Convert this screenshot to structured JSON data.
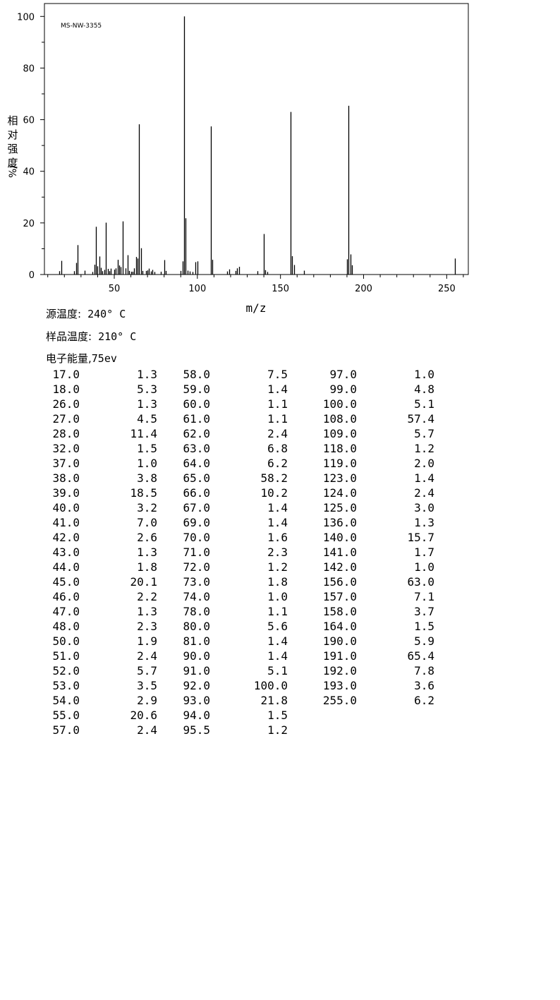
{
  "chart_data": {
    "type": "bar",
    "title": "MS-NW-3355",
    "xlabel": "m/z",
    "ylabel_chars": [
      "相",
      "对",
      "强",
      "度"
    ],
    "ylabel_unit": "%/",
    "xlim": [
      8,
      263
    ],
    "ylim": [
      0,
      105
    ],
    "xticks": [
      50,
      100,
      150,
      200,
      250
    ],
    "yticks": [
      0,
      20,
      40,
      60,
      80,
      100
    ],
    "x": [
      17.0,
      18.0,
      26.0,
      27.0,
      28.0,
      32.0,
      37.0,
      38.0,
      39.0,
      40.0,
      41.0,
      42.0,
      43.0,
      44.0,
      45.0,
      46.0,
      47.0,
      48.0,
      50.0,
      51.0,
      52.0,
      53.0,
      54.0,
      55.0,
      57.0,
      58.0,
      59.0,
      60.0,
      61.0,
      62.0,
      63.0,
      64.0,
      65.0,
      66.0,
      67.0,
      69.0,
      70.0,
      71.0,
      72.0,
      73.0,
      74.0,
      78.0,
      80.0,
      81.0,
      90.0,
      91.0,
      92.0,
      93.0,
      94.0,
      95.5,
      97.0,
      99.0,
      100.0,
      108.0,
      109.0,
      118.0,
      119.0,
      123.0,
      124.0,
      125.0,
      136.0,
      140.0,
      141.0,
      142.0,
      156.0,
      157.0,
      158.0,
      164.0,
      190.0,
      191.0,
      192.0,
      193.0,
      255.0
    ],
    "y": [
      1.3,
      5.3,
      1.3,
      4.5,
      11.4,
      1.5,
      1.0,
      3.8,
      18.5,
      3.2,
      7.0,
      2.6,
      1.3,
      1.8,
      20.1,
      2.2,
      1.3,
      2.3,
      1.9,
      2.4,
      5.7,
      3.5,
      2.9,
      20.6,
      2.4,
      7.5,
      1.4,
      1.1,
      1.1,
      2.4,
      6.8,
      6.2,
      58.2,
      10.2,
      1.4,
      1.4,
      1.6,
      2.3,
      1.2,
      1.8,
      1.0,
      1.1,
      5.6,
      1.4,
      1.4,
      5.1,
      100.0,
      21.8,
      1.5,
      1.2,
      1.0,
      4.8,
      5.1,
      57.4,
      5.7,
      1.2,
      2.0,
      1.4,
      2.4,
      3.0,
      1.3,
      15.7,
      1.7,
      1.0,
      63.0,
      7.1,
      3.7,
      1.5,
      5.9,
      65.4,
      7.8,
      3.6,
      6.2
    ]
  },
  "meta": {
    "source_temp_label": "源温度:",
    "source_temp_value": "240° C",
    "sample_temp_label": "样品温度:",
    "sample_temp_value": "210° C",
    "electron_energy_label": "电子能量,",
    "electron_energy_value": "75ev"
  },
  "table_columns": [
    [
      [
        "17.0",
        "1.3"
      ],
      [
        "18.0",
        "5.3"
      ],
      [
        "26.0",
        "1.3"
      ],
      [
        "27.0",
        "4.5"
      ],
      [
        "28.0",
        "11.4"
      ],
      [
        "32.0",
        "1.5"
      ],
      [
        "37.0",
        "1.0"
      ],
      [
        "38.0",
        "3.8"
      ],
      [
        "39.0",
        "18.5"
      ],
      [
        "40.0",
        "3.2"
      ],
      [
        "41.0",
        "7.0"
      ],
      [
        "42.0",
        "2.6"
      ],
      [
        "43.0",
        "1.3"
      ],
      [
        "44.0",
        "1.8"
      ],
      [
        "45.0",
        "20.1"
      ],
      [
        "46.0",
        "2.2"
      ],
      [
        "47.0",
        "1.3"
      ],
      [
        "48.0",
        "2.3"
      ],
      [
        "50.0",
        "1.9"
      ],
      [
        "51.0",
        "2.4"
      ],
      [
        "52.0",
        "5.7"
      ],
      [
        "53.0",
        "3.5"
      ],
      [
        "54.0",
        "2.9"
      ],
      [
        "55.0",
        "20.6"
      ],
      [
        "57.0",
        "2.4"
      ]
    ],
    [
      [
        "58.0",
        "7.5"
      ],
      [
        "59.0",
        "1.4"
      ],
      [
        "60.0",
        "1.1"
      ],
      [
        "61.0",
        "1.1"
      ],
      [
        "62.0",
        "2.4"
      ],
      [
        "63.0",
        "6.8"
      ],
      [
        "64.0",
        "6.2"
      ],
      [
        "65.0",
        "58.2"
      ],
      [
        "66.0",
        "10.2"
      ],
      [
        "67.0",
        "1.4"
      ],
      [
        "69.0",
        "1.4"
      ],
      [
        "70.0",
        "1.6"
      ],
      [
        "71.0",
        "2.3"
      ],
      [
        "72.0",
        "1.2"
      ],
      [
        "73.0",
        "1.8"
      ],
      [
        "74.0",
        "1.0"
      ],
      [
        "78.0",
        "1.1"
      ],
      [
        "80.0",
        "5.6"
      ],
      [
        "81.0",
        "1.4"
      ],
      [
        "90.0",
        "1.4"
      ],
      [
        "91.0",
        "5.1"
      ],
      [
        "92.0",
        "100.0"
      ],
      [
        "93.0",
        "21.8"
      ],
      [
        "94.0",
        "1.5"
      ],
      [
        "95.5",
        "1.2"
      ]
    ],
    [
      [
        "97.0",
        "1.0"
      ],
      [
        "99.0",
        "4.8"
      ],
      [
        "100.0",
        "5.1"
      ],
      [
        "108.0",
        "57.4"
      ],
      [
        "109.0",
        "5.7"
      ],
      [
        "118.0",
        "1.2"
      ],
      [
        "119.0",
        "2.0"
      ],
      [
        "123.0",
        "1.4"
      ],
      [
        "124.0",
        "2.4"
      ],
      [
        "125.0",
        "3.0"
      ],
      [
        "136.0",
        "1.3"
      ],
      [
        "140.0",
        "15.7"
      ],
      [
        "141.0",
        "1.7"
      ],
      [
        "142.0",
        "1.0"
      ],
      [
        "156.0",
        "63.0"
      ],
      [
        "157.0",
        "7.1"
      ],
      [
        "158.0",
        "3.7"
      ],
      [
        "164.0",
        "1.5"
      ],
      [
        "190.0",
        "5.9"
      ],
      [
        "191.0",
        "65.4"
      ],
      [
        "192.0",
        "7.8"
      ],
      [
        "193.0",
        "3.6"
      ],
      [
        "255.0",
        "6.2"
      ]
    ]
  ]
}
